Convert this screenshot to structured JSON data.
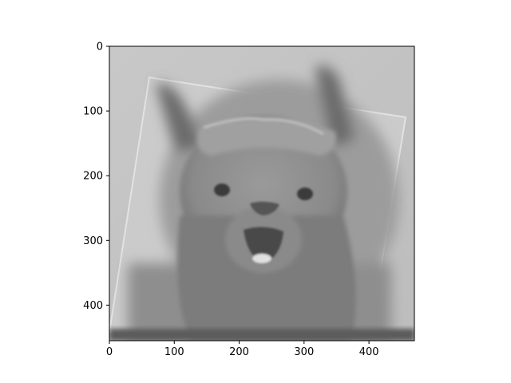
{
  "figure": {
    "image_description": "Grayscale hybrid/overlay image of an alpaca face (frontal, open mouth, tufted forehead) blended with a slightly rotated, blurred copy of the same alpaca; a rotated lighter rectangle frame is visible within the image.",
    "colormap": "gray",
    "colors": {
      "background": "#ffffff",
      "axes_frame": "#000000",
      "image_light": "#d9d9d9",
      "image_mid": "#a8a8a8",
      "image_dark": "#4a4a4a"
    }
  },
  "chart_data": {
    "type": "image",
    "xlim": [
      0,
      470
    ],
    "ylim": [
      455,
      0
    ],
    "y_inverted": true,
    "x_ticks": [
      0,
      100,
      200,
      300,
      400
    ],
    "x_tick_labels": [
      "0",
      "100",
      "200",
      "300",
      "400"
    ],
    "y_ticks": [
      0,
      100,
      200,
      300,
      400
    ],
    "y_tick_labels": [
      "0",
      "100",
      "200",
      "300",
      "400"
    ],
    "title": "",
    "xlabel": "",
    "ylabel": "",
    "grid": false
  }
}
